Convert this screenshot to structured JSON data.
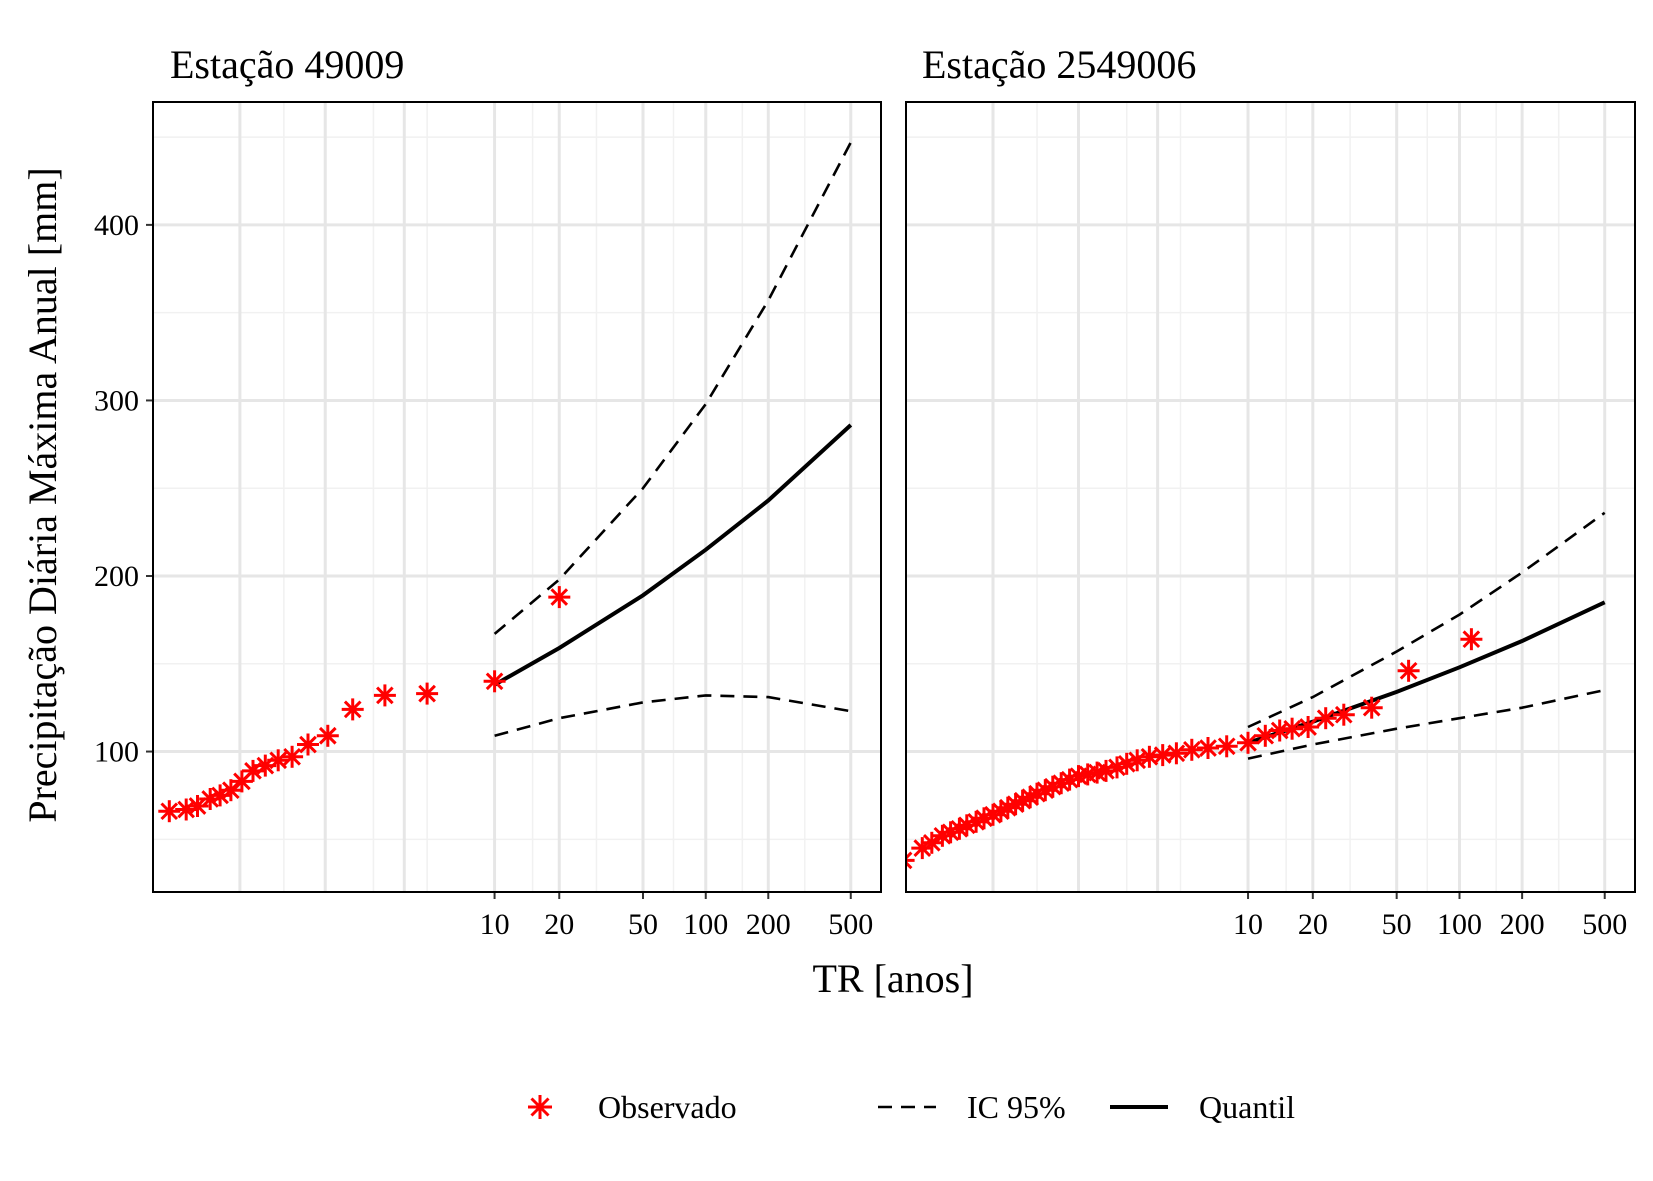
{
  "chart_data": [
    {
      "type": "scatter",
      "panel": "left",
      "title": "Estação 49009",
      "xlabel": "TR [anos]",
      "ylabel": "Precipitação Diária Máxima Anual [mm]",
      "x_scale": "gumbel reduced variate (return period)",
      "x_ticks": [
        10,
        20,
        50,
        100,
        200,
        500
      ],
      "y_ticks": [
        100,
        200,
        300,
        400
      ],
      "ylim": [
        20,
        470
      ],
      "grid": true,
      "series": [
        {
          "name": "Observado",
          "marker": "asterisk",
          "color": "#ff0000",
          "points": [
            {
              "x": 1.02,
              "y": 66
            },
            {
              "x": 1.04,
              "y": 67
            },
            {
              "x": 1.06,
              "y": 69
            },
            {
              "x": 1.09,
              "y": 73
            },
            {
              "x": 1.12,
              "y": 75
            },
            {
              "x": 1.16,
              "y": 78
            },
            {
              "x": 1.21,
              "y": 83
            },
            {
              "x": 1.27,
              "y": 89
            },
            {
              "x": 1.35,
              "y": 92
            },
            {
              "x": 1.45,
              "y": 95
            },
            {
              "x": 1.58,
              "y": 97
            },
            {
              "x": 1.76,
              "y": 104
            },
            {
              "x": 2.04,
              "y": 109
            },
            {
              "x": 2.5,
              "y": 124
            },
            {
              "x": 3.33,
              "y": 132
            },
            {
              "x": 5.0,
              "y": 133
            },
            {
              "x": 10.0,
              "y": 140
            },
            {
              "x": 20.0,
              "y": 188
            }
          ]
        },
        {
          "name": "Quantil",
          "style": "solid",
          "color": "#000000",
          "points": [
            {
              "x": 10,
              "y": 138
            },
            {
              "x": 20,
              "y": 159
            },
            {
              "x": 50,
              "y": 189
            },
            {
              "x": 100,
              "y": 215
            },
            {
              "x": 200,
              "y": 243
            },
            {
              "x": 500,
              "y": 286
            }
          ]
        },
        {
          "name": "IC 95%",
          "style": "dashed",
          "color": "#000000",
          "points": [
            {
              "x": 10,
              "y": 167
            },
            {
              "x": 20,
              "y": 198
            },
            {
              "x": 50,
              "y": 250
            },
            {
              "x": 100,
              "y": 298
            },
            {
              "x": 200,
              "y": 357
            },
            {
              "x": 500,
              "y": 447
            }
          ]
        },
        {
          "name": "IC 95%",
          "style": "dashed",
          "color": "#000000",
          "points": [
            {
              "x": 10,
              "y": 109
            },
            {
              "x": 20,
              "y": 119
            },
            {
              "x": 50,
              "y": 128
            },
            {
              "x": 100,
              "y": 132
            },
            {
              "x": 200,
              "y": 131
            },
            {
              "x": 500,
              "y": 123
            }
          ]
        }
      ]
    },
    {
      "type": "scatter",
      "panel": "right",
      "title": "Estação 2549006",
      "xlabel": "TR [anos]",
      "ylabel": "Precipitação Diária Máxima Anual [mm]",
      "x_scale": "gumbel reduced variate (return period)",
      "x_ticks": [
        10,
        20,
        50,
        100,
        200,
        500
      ],
      "y_ticks": [
        100,
        200,
        300,
        400
      ],
      "ylim": [
        20,
        470
      ],
      "grid": true,
      "series": [
        {
          "name": "Observado",
          "marker": "asterisk",
          "color": "#ff0000",
          "points": [
            {
              "x": 1.008,
              "y": 38
            },
            {
              "x": 1.02,
              "y": 45
            },
            {
              "x": 1.03,
              "y": 48
            },
            {
              "x": 1.045,
              "y": 52
            },
            {
              "x": 1.06,
              "y": 54
            },
            {
              "x": 1.08,
              "y": 56
            },
            {
              "x": 1.1,
              "y": 58
            },
            {
              "x": 1.13,
              "y": 60
            },
            {
              "x": 1.16,
              "y": 62
            },
            {
              "x": 1.2,
              "y": 64
            },
            {
              "x": 1.24,
              "y": 66
            },
            {
              "x": 1.28,
              "y": 68
            },
            {
              "x": 1.33,
              "y": 70
            },
            {
              "x": 1.38,
              "y": 72
            },
            {
              "x": 1.44,
              "y": 74
            },
            {
              "x": 1.5,
              "y": 76
            },
            {
              "x": 1.58,
              "y": 78
            },
            {
              "x": 1.66,
              "y": 80
            },
            {
              "x": 1.76,
              "y": 82
            },
            {
              "x": 1.87,
              "y": 84
            },
            {
              "x": 2.0,
              "y": 86
            },
            {
              "x": 2.15,
              "y": 87
            },
            {
              "x": 2.32,
              "y": 88
            },
            {
              "x": 2.5,
              "y": 89
            },
            {
              "x": 2.75,
              "y": 91
            },
            {
              "x": 3.0,
              "y": 93
            },
            {
              "x": 3.3,
              "y": 95
            },
            {
              "x": 3.7,
              "y": 97
            },
            {
              "x": 4.2,
              "y": 98
            },
            {
              "x": 4.8,
              "y": 99
            },
            {
              "x": 5.6,
              "y": 101
            },
            {
              "x": 6.6,
              "y": 102
            },
            {
              "x": 8.0,
              "y": 103
            },
            {
              "x": 10.0,
              "y": 105
            },
            {
              "x": 12.0,
              "y": 109
            },
            {
              "x": 14.0,
              "y": 112
            },
            {
              "x": 16.0,
              "y": 113
            },
            {
              "x": 19.0,
              "y": 114
            },
            {
              "x": 23.0,
              "y": 119
            },
            {
              "x": 28.0,
              "y": 121
            },
            {
              "x": 38.0,
              "y": 125
            },
            {
              "x": 57.0,
              "y": 146
            },
            {
              "x": 114.0,
              "y": 164
            }
          ]
        },
        {
          "name": "Quantil",
          "style": "solid",
          "color": "#000000",
          "points": [
            {
              "x": 10,
              "y": 105
            },
            {
              "x": 20,
              "y": 117
            },
            {
              "x": 50,
              "y": 134
            },
            {
              "x": 100,
              "y": 148
            },
            {
              "x": 200,
              "y": 163
            },
            {
              "x": 500,
              "y": 185
            }
          ]
        },
        {
          "name": "IC 95%",
          "style": "dashed",
          "color": "#000000",
          "points": [
            {
              "x": 10,
              "y": 114
            },
            {
              "x": 20,
              "y": 131
            },
            {
              "x": 50,
              "y": 157
            },
            {
              "x": 100,
              "y": 178
            },
            {
              "x": 200,
              "y": 202
            },
            {
              "x": 500,
              "y": 236
            }
          ]
        },
        {
          "name": "IC 95%",
          "style": "dashed",
          "color": "#000000",
          "points": [
            {
              "x": 10,
              "y": 96
            },
            {
              "x": 20,
              "y": 104
            },
            {
              "x": 50,
              "y": 113
            },
            {
              "x": 100,
              "y": 119
            },
            {
              "x": 200,
              "y": 125
            },
            {
              "x": 500,
              "y": 135
            }
          ]
        }
      ]
    }
  ],
  "axes": {
    "xlabel": "TR [anos]",
    "ylabel": "Precipitação Diária Máxima Anual [mm]"
  },
  "legend": {
    "position": "bottom",
    "items": [
      {
        "label": "Observado",
        "symbol": "asterisk",
        "color": "#ff0000"
      },
      {
        "label": "IC 95%",
        "symbol": "dashed-line",
        "color": "#000000"
      },
      {
        "label": "Quantil",
        "symbol": "solid-line",
        "color": "#000000"
      }
    ]
  }
}
